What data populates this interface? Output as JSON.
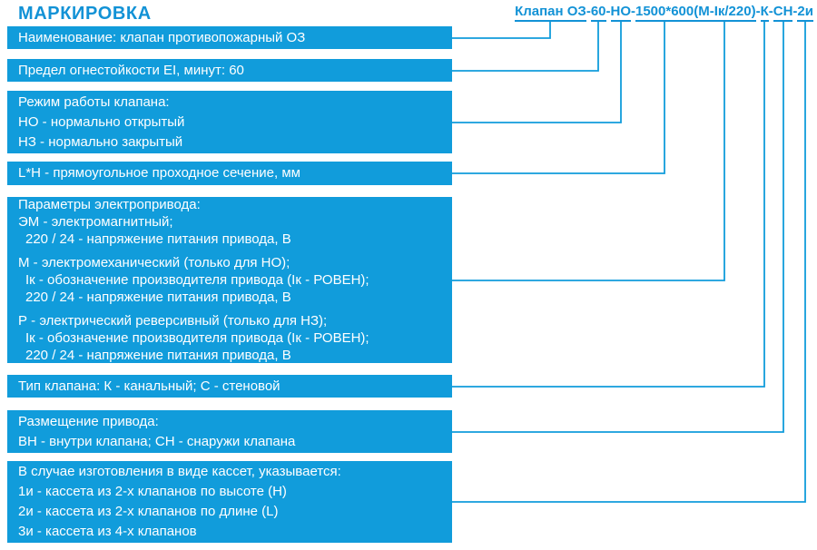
{
  "title": "МАРКИРОВКА",
  "colors": {
    "accent": "#119CDB",
    "text_blue": "#1292D6",
    "box_text": "#FFFFFF",
    "background": "#FFFFFF"
  },
  "marking_code": {
    "full_text": "Клапан ОЗ-60-НО-1500*600(М-Iк/220)-К-СН-2и",
    "segments": [
      {
        "name": "product",
        "text": "Клапан ОЗ",
        "sep_before": ""
      },
      {
        "name": "ei",
        "text": "60",
        "sep_before": "-"
      },
      {
        "name": "mode",
        "text": "НО",
        "sep_before": "-"
      },
      {
        "name": "dimensions",
        "text": "1500*600",
        "sep_before": "-"
      },
      {
        "name": "actuator",
        "text": "(М-Iк/220)",
        "sep_before": ""
      },
      {
        "name": "type",
        "text": "К",
        "sep_before": "-"
      },
      {
        "name": "placement",
        "text": "СН",
        "sep_before": "-"
      },
      {
        "name": "cassette",
        "text": "2и",
        "sep_before": "-"
      }
    ]
  },
  "boxes": [
    {
      "name": "name",
      "groups": [
        [
          {
            "text": "Наименование: клапан противопожарный ОЗ"
          }
        ]
      ]
    },
    {
      "name": "fire-resistance",
      "groups": [
        [
          {
            "text": "Предел огнестойкости EI, минут: 60"
          }
        ]
      ]
    },
    {
      "name": "operating-mode",
      "groups": [
        [
          {
            "text": "Режим работы клапана:"
          },
          {
            "text": "НО - нормально открытый"
          },
          {
            "text": "НЗ - нормально закрытый"
          }
        ]
      ]
    },
    {
      "name": "cross-section",
      "groups": [
        [
          {
            "text": "L*H - прямоугольное проходное сечение, мм"
          }
        ]
      ]
    },
    {
      "name": "actuator-params",
      "groups": [
        [
          {
            "text": "Параметры электропривода:"
          },
          {
            "text": "ЭМ - электромагнитный;"
          },
          {
            "text": "220 / 24 - напряжение питания привода, В",
            "indent": true
          }
        ],
        [
          {
            "text": "М - электромеханический (только для НО);"
          },
          {
            "text": "Iк - обозначение производителя привода (Iк - РОВЕН);",
            "indent": true
          },
          {
            "text": "220 / 24 - напряжение питания привода, В",
            "indent": true
          }
        ],
        [
          {
            "text": "Р - электрический реверсивный (только для НЗ);"
          },
          {
            "text": "Iк - обозначение производителя привода (Iк - РОВЕН);",
            "indent": true
          },
          {
            "text": "220 / 24 - напряжение питания привода, В",
            "indent": true
          }
        ]
      ]
    },
    {
      "name": "valve-type",
      "groups": [
        [
          {
            "text": "Тип клапана: К - канальный; С - стеновой"
          }
        ]
      ]
    },
    {
      "name": "actuator-placement",
      "groups": [
        [
          {
            "text": "Размещение привода:"
          },
          {
            "text": "ВН - внутри клапана; СН - снаружи клапана"
          }
        ]
      ]
    },
    {
      "name": "cassette-options",
      "groups": [
        [
          {
            "text": "В случае изготовления в виде кассет, указывается:"
          },
          {
            "text": "1и - кассета из 2-х клапанов по высоте (Н)"
          },
          {
            "text": "2и - кассета из 2-х клапанов по длине (L)"
          },
          {
            "text": "3и - кассета из 4-х клапанов"
          }
        ]
      ]
    }
  ]
}
